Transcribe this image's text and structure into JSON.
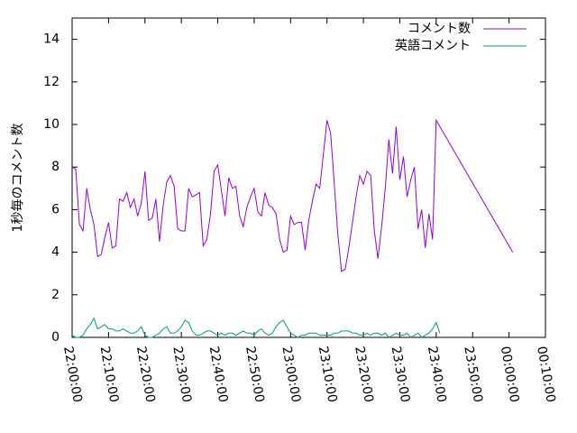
{
  "chart_data": {
    "type": "line",
    "title": "",
    "xlabel": "",
    "ylabel": "1秒毎のコメント数",
    "ylim": [
      0,
      15
    ],
    "xlim": [
      "22:00:00",
      "00:10:00"
    ],
    "grid": false,
    "legend_position": "top-right",
    "x_tick_labels": [
      "22:00:00",
      "22:10:00",
      "22:20:00",
      "22:30:00",
      "22:40:00",
      "22:50:00",
      "23:00:00",
      "23:10:00",
      "23:20:00",
      "23:30:00",
      "23:40:00",
      "23:50:00",
      "00:00:00",
      "00:10:00"
    ],
    "y_tick_labels": [
      "0",
      "2",
      "4",
      "6",
      "8",
      "10",
      "12",
      "14"
    ],
    "y_ticks": [
      0,
      2,
      4,
      6,
      8,
      10,
      12,
      14
    ],
    "x_minutes": [
      0,
      1,
      2,
      3,
      4,
      5,
      6,
      7,
      8,
      9,
      10,
      11,
      12,
      13,
      14,
      15,
      16,
      17,
      18,
      19,
      20,
      21,
      22,
      23,
      24,
      25,
      26,
      27,
      28,
      29,
      30,
      31,
      32,
      33,
      34,
      35,
      36,
      37,
      38,
      39,
      40,
      41,
      42,
      43,
      44,
      45,
      46,
      47,
      48,
      49,
      50,
      51,
      52,
      53,
      54,
      55,
      56,
      57,
      58,
      59,
      60,
      61,
      62,
      63,
      64,
      65,
      66,
      67,
      68,
      69,
      70,
      71,
      72,
      73,
      74,
      75,
      76,
      77,
      78,
      79,
      80,
      81,
      82,
      83,
      84,
      85,
      86,
      87,
      88,
      89,
      90,
      91,
      92,
      93,
      94,
      95,
      96,
      97,
      98,
      99,
      100,
      101,
      102,
      103,
      104,
      105,
      106,
      107,
      108,
      109,
      110,
      111,
      112,
      113,
      114,
      115,
      116,
      117,
      118,
      119,
      120,
      121
    ],
    "series": [
      {
        "name": "コメント数",
        "color": "#9400d3",
        "values": [
          8.0,
          7.9,
          5.3,
          5.0,
          7.0,
          6.0,
          5.3,
          3.8,
          3.9,
          4.7,
          5.4,
          4.2,
          4.3,
          6.5,
          6.4,
          6.8,
          6.1,
          6.5,
          5.7,
          6.3,
          7.8,
          5.5,
          5.6,
          6.5,
          4.5,
          6.2,
          7.3,
          7.6,
          7.1,
          5.1,
          5.0,
          5.0,
          7.0,
          6.6,
          6.7,
          6.8,
          4.3,
          4.6,
          5.8,
          7.8,
          8.1,
          6.9,
          5.7,
          7.5,
          7.0,
          7.1,
          5.7,
          5.2,
          6.1,
          6.6,
          7.0,
          5.9,
          5.7,
          6.8,
          6.2,
          6.1,
          5.8,
          4.6,
          4.0,
          4.1,
          5.7,
          5.3,
          5.4,
          5.4,
          4.1,
          5.5,
          6.4,
          7.2,
          7.0,
          8.6,
          10.2,
          9.6,
          7.2,
          4.8,
          3.1,
          3.2,
          4.2,
          5.4,
          6.6,
          7.6,
          7.2,
          7.8,
          7.6,
          5.0,
          3.7,
          5.2,
          7.0,
          9.3,
          7.7,
          9.9,
          7.4,
          8.5,
          6.6,
          7.4,
          8.0,
          5.1,
          6.0,
          4.2,
          5.8,
          4.6,
          10.2,
          4.0
        ],
        "x_end_minute": 121
      },
      {
        "name": "英語コメント",
        "color": "#009e73",
        "values": [
          0.1,
          0.0,
          0.0,
          0.1,
          0.4,
          0.6,
          0.9,
          0.4,
          0.5,
          0.6,
          0.4,
          0.4,
          0.3,
          0.3,
          0.4,
          0.3,
          0.2,
          0.2,
          0.3,
          0.5,
          0.1,
          0.0,
          0.0,
          0.1,
          0.2,
          0.4,
          0.5,
          0.2,
          0.2,
          0.3,
          0.5,
          0.8,
          0.7,
          0.3,
          0.1,
          0.1,
          0.2,
          0.3,
          0.3,
          0.2,
          0.1,
          0.2,
          0.1,
          0.2,
          0.2,
          0.1,
          0.2,
          0.3,
          0.2,
          0.2,
          0.1,
          0.3,
          0.4,
          0.2,
          0.1,
          0.2,
          0.5,
          0.7,
          0.8,
          0.5,
          0.2,
          0.1,
          0.0,
          0.1,
          0.1,
          0.2,
          0.2,
          0.2,
          0.1,
          0.1,
          0.1,
          0.1,
          0.2,
          0.2,
          0.3,
          0.3,
          0.3,
          0.2,
          0.2,
          0.1,
          0.1,
          0.2,
          0.1,
          0.2,
          0.2,
          0.1,
          0.2,
          0.0,
          0.1,
          0.2,
          0.1,
          0.1,
          0.2,
          0.0,
          0.1,
          0.2,
          0.0,
          0.1,
          0.2,
          0.4,
          0.7,
          0.2
        ]
      }
    ]
  }
}
